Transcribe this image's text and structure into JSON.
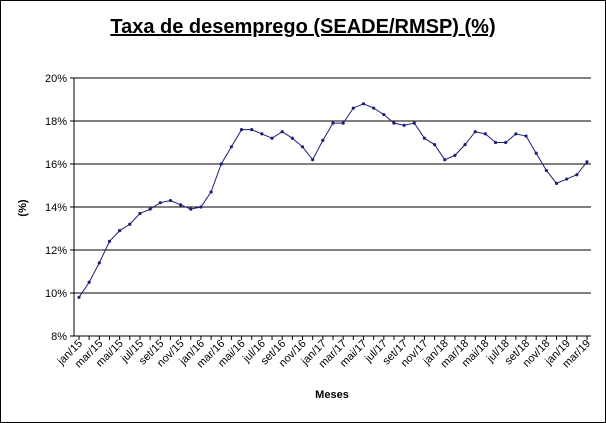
{
  "chart_data": {
    "type": "line",
    "title": "Taxa de desemprego (SEADE/RMSP) (%)",
    "xlabel": "Meses",
    "ylabel": "(%)",
    "ylim": [
      8,
      20
    ],
    "ytick_values": [
      8,
      10,
      12,
      14,
      16,
      18,
      20
    ],
    "ytick_labels": [
      "8%",
      "10%",
      "12%",
      "14%",
      "16%",
      "18%",
      "20%"
    ],
    "grid": "horizontal",
    "legend": "none",
    "line_color": "#1f1f7a",
    "x": [
      "jan/15",
      "fev/15",
      "mar/15",
      "abr/15",
      "mai/15",
      "jun/15",
      "jul/15",
      "ago/15",
      "set/15",
      "out/15",
      "nov/15",
      "dez/15",
      "jan/16",
      "fev/16",
      "mar/16",
      "abr/16",
      "mai/16",
      "jun/16",
      "jul/16",
      "ago/16",
      "set/16",
      "out/16",
      "nov/16",
      "dez/16",
      "jan/17",
      "fev/17",
      "mar/17",
      "abr/17",
      "mai/17",
      "jun/17",
      "jul/17",
      "ago/17",
      "set/17",
      "out/17",
      "nov/17",
      "dez/17",
      "jan/18",
      "fev/18",
      "mar/18",
      "abr/18",
      "mai/18",
      "jun/18",
      "jul/18",
      "ago/18",
      "set/18",
      "out/18",
      "nov/18",
      "dez/18",
      "jan/19",
      "fev/19",
      "mar/19"
    ],
    "xtick_labels": [
      "jan/15",
      "mar/15",
      "mai/15",
      "jul/15",
      "set/15",
      "nov/15",
      "jan/16",
      "mar/16",
      "mai/16",
      "jul/16",
      "set/16",
      "nov/16",
      "jan/17",
      "mar/17",
      "mai/17",
      "jul/17",
      "set/17",
      "nov/17",
      "jan/18",
      "mar/18",
      "mai/18",
      "jul/18",
      "set/18",
      "nov/18",
      "jan/19",
      "mar/19"
    ],
    "series": [
      {
        "values": [
          9.8,
          10.5,
          11.4,
          12.4,
          12.9,
          13.2,
          13.7,
          13.9,
          14.2,
          14.3,
          14.1,
          13.9,
          14.0,
          14.7,
          16.0,
          16.8,
          17.6,
          17.6,
          17.4,
          17.2,
          17.5,
          17.2,
          16.8,
          16.2,
          17.1,
          17.9,
          17.9,
          18.6,
          18.8,
          18.6,
          18.3,
          17.9,
          17.8,
          17.9,
          17.2,
          16.9,
          16.2,
          16.4,
          16.9,
          17.5,
          17.4,
          17.0,
          17.0,
          17.4,
          17.3,
          16.5,
          15.7,
          15.1,
          15.3,
          15.5,
          16.1
        ]
      }
    ]
  }
}
